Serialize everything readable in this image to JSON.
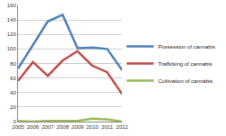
{
  "chart_data": {
    "type": "line",
    "categories": [
      "2005",
      "2006",
      "2007",
      "2008",
      "2009",
      "2010",
      "2011",
      "2012"
    ],
    "series": [
      {
        "name": "Possession of cannabis",
        "color": "#4f81bd",
        "values": [
          73,
          105,
          138,
          147,
          101,
          102,
          100,
          71
        ]
      },
      {
        "name": "Trafficking of cannabis",
        "color": "#c0504d",
        "values": [
          56,
          82,
          63,
          84,
          97,
          77,
          68,
          38
        ]
      },
      {
        "name": "Cultivation of cannabis",
        "color": "#9bbb59",
        "values": [
          1,
          0,
          1,
          1,
          1,
          4,
          3,
          0
        ]
      }
    ],
    "ylim": [
      0,
      160
    ],
    "yticks": [
      0,
      20,
      40,
      60,
      80,
      100,
      120,
      140,
      160
    ],
    "grid": true,
    "legend": "right"
  }
}
